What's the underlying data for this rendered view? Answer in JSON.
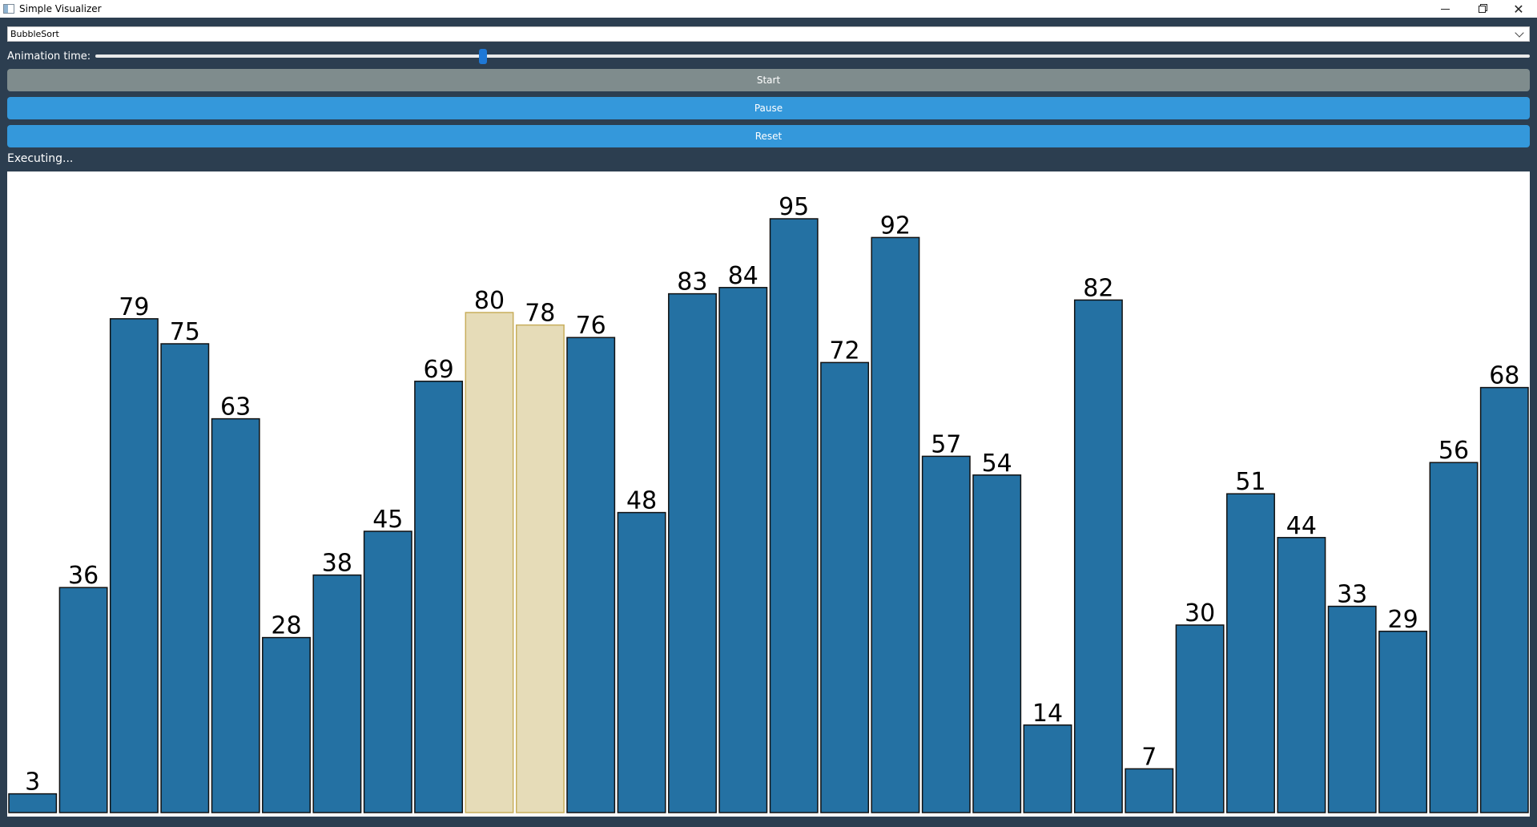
{
  "window": {
    "title": "Simple Visualizer",
    "icons": {
      "app": "window-app-icon",
      "minimize": "minimize-icon",
      "maximize": "restore-icon",
      "close": "close-icon"
    }
  },
  "algorithm_select": {
    "value": "BubbleSort"
  },
  "animation": {
    "label": "Animation time:",
    "slider_fraction": 0.27
  },
  "buttons": {
    "start": "Start",
    "pause": "Pause",
    "reset": "Reset"
  },
  "status": "Executing...",
  "colors": {
    "background": "#2c3e50",
    "bar": "#2471a3",
    "highlight": "#e6dcb8",
    "highlight_border": "#c8ae5c",
    "start_button": "#7f8c8d",
    "action_button": "#3498db"
  },
  "chart_data": {
    "type": "bar",
    "values": [
      3,
      36,
      79,
      75,
      63,
      28,
      38,
      45,
      69,
      80,
      78,
      76,
      48,
      83,
      84,
      95,
      72,
      92,
      57,
      54,
      14,
      82,
      7,
      30,
      51,
      44,
      33,
      29,
      56,
      68
    ],
    "highlighted_indices": [
      9,
      10
    ],
    "ylim": [
      0,
      100
    ],
    "grid": false,
    "legend": "none"
  }
}
